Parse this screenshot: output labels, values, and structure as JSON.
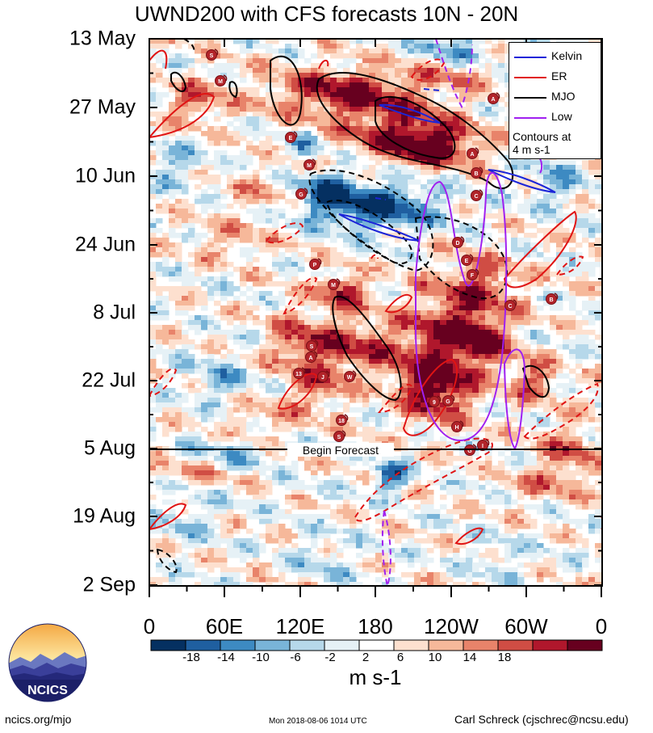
{
  "title": "UWND200 with CFS forecasts  10N - 20N",
  "chart_data": {
    "type": "heatmap",
    "title": "UWND200 with CFS forecasts  10N - 20N",
    "x_axis": {
      "ticks": [
        "0",
        "60E",
        "120E",
        "180",
        "120W",
        "60W",
        "0"
      ],
      "range": [
        0,
        360
      ],
      "unit": "degrees longitude"
    },
    "y_axis": {
      "ticks": [
        "13 May",
        "27 May",
        "10 Jun",
        "24 Jun",
        "8 Jul",
        "22 Jul",
        "5 Aug",
        "19 Aug",
        "2 Sep"
      ],
      "direction": "time increasing downward"
    },
    "forecast_label": "Begin Forecast",
    "forecast_date": "5 Aug",
    "colorbar": {
      "labels": [
        "-18",
        "-14",
        "-10",
        "-6",
        "-2",
        "2",
        "6",
        "10",
        "14",
        "18"
      ],
      "colors": [
        "#053061",
        "#1f5fa0",
        "#3d8ac2",
        "#79b4d8",
        "#b6d8ea",
        "#e6f1f6",
        "#ffffff",
        "#fde0cf",
        "#f6b89a",
        "#e8836a",
        "#d04d44",
        "#b0172c",
        "#67001f"
      ],
      "units": "m s-1"
    },
    "legend": [
      {
        "name": "Kelvin",
        "color": "#1c25d8"
      },
      {
        "name": "ER",
        "color": "#e01414"
      },
      {
        "name": "MJO",
        "color": "#000000"
      },
      {
        "name": "Low",
        "color": "#a020f0"
      }
    ],
    "contour_note": [
      "Contours at",
      "4 m s-1"
    ],
    "storm_labels": [
      "S",
      "M",
      "E",
      "M",
      "G",
      "A",
      "B",
      "C",
      "D",
      "E",
      "F",
      "P",
      "M",
      "S",
      "A",
      "13",
      "J",
      "W",
      "18",
      "S",
      "9",
      "G",
      "H",
      "G",
      "I",
      "C",
      "B",
      "A"
    ]
  },
  "footer": {
    "site": "ncics.org/mjo",
    "timestamp": "Mon 2018-08-06 1014 UTC",
    "author": "Carl Schreck (cjschrec@ncsu.edu)"
  },
  "logo_text": "NCICS"
}
